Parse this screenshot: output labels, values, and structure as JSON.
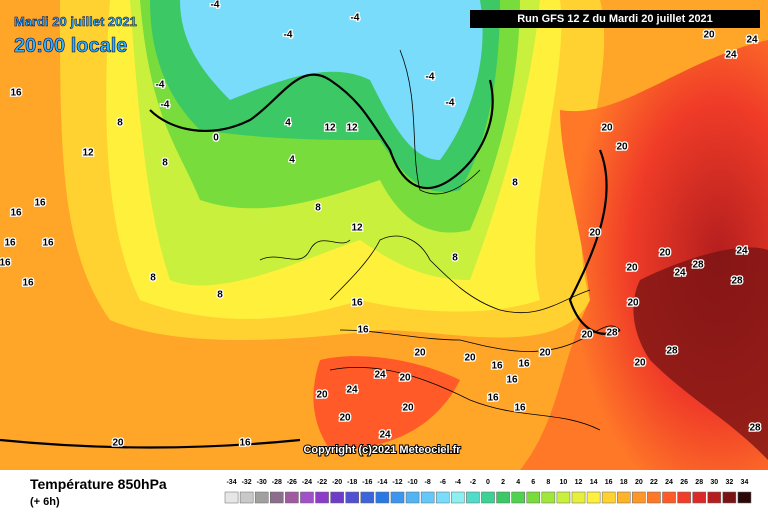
{
  "header": {
    "date": "Mardi 20 juillet 2021",
    "time": "20:00 locale",
    "run": "Run GFS 12 Z du Mardi 20 juillet 2021"
  },
  "copyright": "Copyright (c)2021 Meteociel.fr",
  "footer": {
    "title": "Température 850hPa",
    "step": "(+ 6h)"
  },
  "legend": {
    "labels": [
      "-34",
      "-32",
      "-30",
      "-28",
      "-26",
      "-24",
      "-22",
      "-20",
      "-18",
      "-16",
      "-14",
      "-12",
      "-10",
      "-8",
      "-6",
      "-4",
      "-2",
      "0",
      "2",
      "4",
      "6",
      "8",
      "10",
      "12",
      "14",
      "16",
      "18",
      "20",
      "22",
      "24",
      "26",
      "28",
      "30",
      "32",
      "34"
    ],
    "colors": [
      "#e6e6e6",
      "#c8c8c8",
      "#a0a0a0",
      "#8c6e8c",
      "#a05aa0",
      "#a050c8",
      "#8c3cc8",
      "#6e3cc8",
      "#5050d2",
      "#3c64dc",
      "#2878e6",
      "#3c96f0",
      "#50b4f5",
      "#64c8fa",
      "#78dcfa",
      "#8cf0f0",
      "#50dcc8",
      "#3cd296",
      "#3cc864",
      "#50d250",
      "#78dc3c",
      "#a0e63c",
      "#c8f03c",
      "#e6f03c",
      "#fff03c",
      "#ffd232",
      "#ffb428",
      "#ff9628",
      "#ff7828",
      "#ff5a28",
      "#f03c28",
      "#dc2828",
      "#b41e1e",
      "#7a1414",
      "#2a0808"
    ]
  },
  "contour_labels": [
    "16",
    "8",
    "12",
    "8",
    "16",
    "16",
    "16",
    "16",
    "16",
    "16",
    "8",
    "8",
    "8",
    "4",
    "4",
    "12",
    "12",
    "0",
    "-4",
    "-4",
    "-4",
    "-4",
    "-4",
    "-4",
    "-4",
    "8",
    "8",
    "12",
    "16",
    "16",
    "20",
    "20",
    "16",
    "16",
    "20",
    "16",
    "16",
    "16",
    "24",
    "20",
    "24",
    "20",
    "20",
    "20",
    "24",
    "16",
    "20",
    "20",
    "20",
    "20",
    "20",
    "20",
    "28",
    "24",
    "24",
    "28",
    "20",
    "28",
    "20",
    "20",
    "28",
    "28",
    "20",
    "24",
    "24"
  ]
}
